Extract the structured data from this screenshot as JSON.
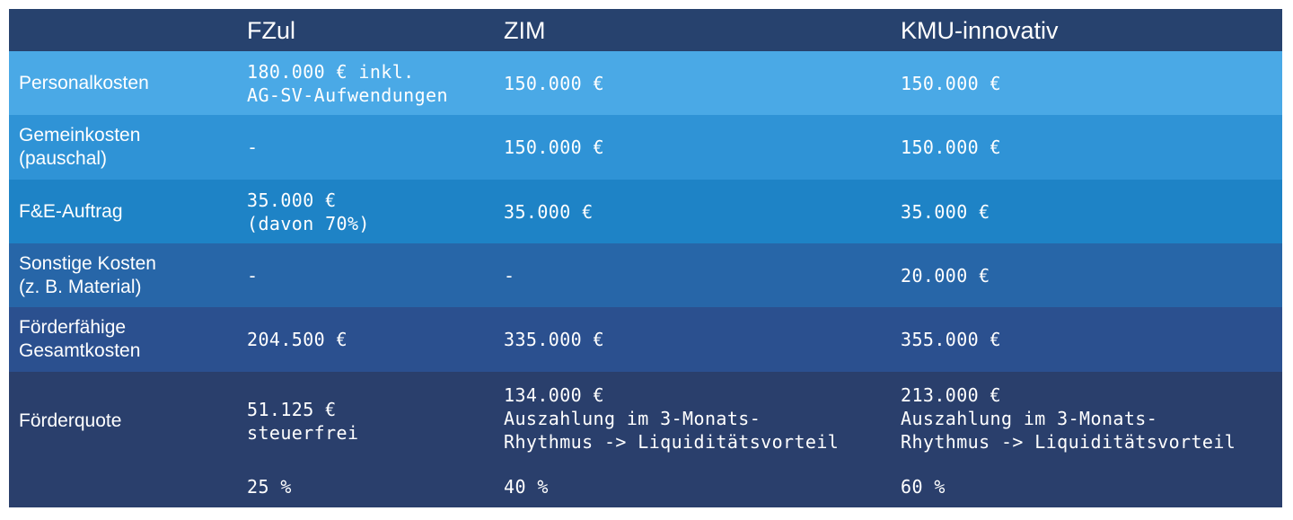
{
  "header": {
    "col0": "",
    "col1": "FZul",
    "col2": "ZIM",
    "col3": "KMU-innovativ"
  },
  "rows": [
    {
      "label": "Personalkosten",
      "fzul": "180.000 € inkl.\nAG-SV-Aufwendungen",
      "zim": "150.000 €",
      "kmu": "150.000 €"
    },
    {
      "label": "Gemeinkosten\n(pauschal)",
      "fzul": "-",
      "zim": "150.000 €",
      "kmu": "150.000 €"
    },
    {
      "label": "F&E-Auftrag",
      "fzul": "35.000 €\n(davon 70%)",
      "zim": "35.000 €",
      "kmu": "35.000 €"
    },
    {
      "label": "Sonstige Kosten\n(z. B. Material)",
      "fzul": "-",
      "zim": "-",
      "kmu": "20.000 €"
    },
    {
      "label": "Förderfähige\nGesamtkosten",
      "fzul": "204.500 €",
      "zim": "335.000 €",
      "kmu": "355.000 €"
    }
  ],
  "foerderquote": {
    "label": "Förderquote",
    "fzul": "51.125 €\nsteuerfrei",
    "zim": "134.000 €\nAuszahlung im 3-Monats-\nRhythmus -> Liquiditätsvorteil",
    "kmu": "213.000 €\nAuszahlung im 3-Monats-\nRhythmus -> Liquiditätsvorteil",
    "fzul_rate": "25 %",
    "zim_rate": "40 %",
    "kmu_rate": "60 %"
  }
}
